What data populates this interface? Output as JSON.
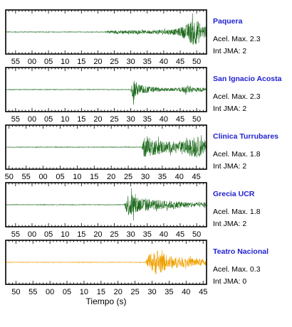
{
  "figure": {
    "xlabel": "Tiempo (s)",
    "line_color_normal": "#1e6b1e",
    "line_color_alert": "#f0a000",
    "title_color": "#1f1fd0"
  },
  "chart_data": [
    {
      "type": "line",
      "station": "Paquera",
      "accel_text": "Acel. Max. 2.3",
      "jma_text": "Int JMA: 2",
      "color": "#1e6b1e",
      "tick_labels": [
        "55",
        "00",
        "05",
        "10",
        "15",
        "20",
        "25",
        "30",
        "35",
        "40",
        "45",
        "50"
      ],
      "xlim": [
        52,
        113
      ],
      "onset": 83,
      "envelope": [
        [
          52,
          0.02
        ],
        [
          82.5,
          0.02
        ],
        [
          83,
          0.12
        ],
        [
          87,
          0.14
        ],
        [
          95,
          0.12
        ],
        [
          104,
          0.22
        ],
        [
          107,
          0.55
        ],
        [
          109,
          1.0
        ],
        [
          111,
          0.75
        ],
        [
          113,
          0.35
        ]
      ]
    },
    {
      "type": "line",
      "station": "San Ignacio Acosta",
      "accel_text": "Acel. Max. 2.3",
      "jma_text": "Int JMA: 2",
      "color": "#1e6b1e",
      "tick_labels": [
        "55",
        "00",
        "05",
        "10",
        "15",
        "20",
        "25",
        "30",
        "35",
        "40",
        "45",
        "50"
      ],
      "xlim": [
        52,
        113
      ],
      "onset": 90.5,
      "envelope": [
        [
          52,
          0.02
        ],
        [
          90,
          0.02
        ],
        [
          90.8,
          0.95
        ],
        [
          92,
          0.45
        ],
        [
          95,
          0.25
        ],
        [
          100,
          0.12
        ],
        [
          104,
          0.1
        ],
        [
          107,
          0.28
        ],
        [
          110,
          0.18
        ],
        [
          113,
          0.1
        ]
      ]
    },
    {
      "type": "line",
      "station": "Clinica Turrubares",
      "accel_text": "Acel. Max. 1.8",
      "jma_text": "Int JMA: 2",
      "color": "#1e6b1e",
      "tick_labels": [
        "50",
        "55",
        "00",
        "05",
        "10",
        "15",
        "20",
        "25",
        "30",
        "35",
        "40",
        "45"
      ],
      "xlim": [
        49,
        108
      ],
      "onset": 89.5,
      "envelope": [
        [
          49,
          0.02
        ],
        [
          89,
          0.02
        ],
        [
          89.8,
          0.85
        ],
        [
          92,
          0.6
        ],
        [
          96,
          0.45
        ],
        [
          100,
          0.35
        ],
        [
          103,
          0.6
        ],
        [
          105,
          0.8
        ],
        [
          107,
          0.55
        ],
        [
          108,
          0.45
        ]
      ]
    },
    {
      "type": "line",
      "station": "Grecia UCR",
      "accel_text": "Acel. Max. 1.8",
      "jma_text": "Int JMA: 2",
      "color": "#1e6b1e",
      "tick_labels": [
        "55",
        "00",
        "05",
        "10",
        "15",
        "20",
        "25",
        "30",
        "35",
        "40",
        "45",
        "50"
      ],
      "xlim": [
        52,
        113
      ],
      "onset": 88.5,
      "envelope": [
        [
          52,
          0.02
        ],
        [
          88,
          0.02
        ],
        [
          88.8,
          0.7
        ],
        [
          90,
          0.95
        ],
        [
          93,
          0.55
        ],
        [
          98,
          0.35
        ],
        [
          103,
          0.28
        ],
        [
          107,
          0.22
        ],
        [
          110,
          0.2
        ],
        [
          113,
          0.18
        ]
      ]
    },
    {
      "type": "line",
      "station": "Teatro Nacional",
      "accel_text": "Acel. Max. 0.3",
      "jma_text": "Int JMA: 0",
      "color": "#f0a000",
      "tick_labels": [
        "50",
        "55",
        "00",
        "05",
        "10",
        "15",
        "20",
        "25",
        "30",
        "35",
        "40",
        "45"
      ],
      "xlim": [
        47,
        106
      ],
      "onset": 88.5,
      "envelope": [
        [
          47,
          0.02
        ],
        [
          88,
          0.02
        ],
        [
          89,
          0.55
        ],
        [
          90.5,
          0.75
        ],
        [
          91.5,
          1.0
        ],
        [
          94,
          0.55
        ],
        [
          97,
          0.4
        ],
        [
          100,
          0.35
        ],
        [
          103,
          0.3
        ],
        [
          106,
          0.25
        ]
      ]
    }
  ]
}
